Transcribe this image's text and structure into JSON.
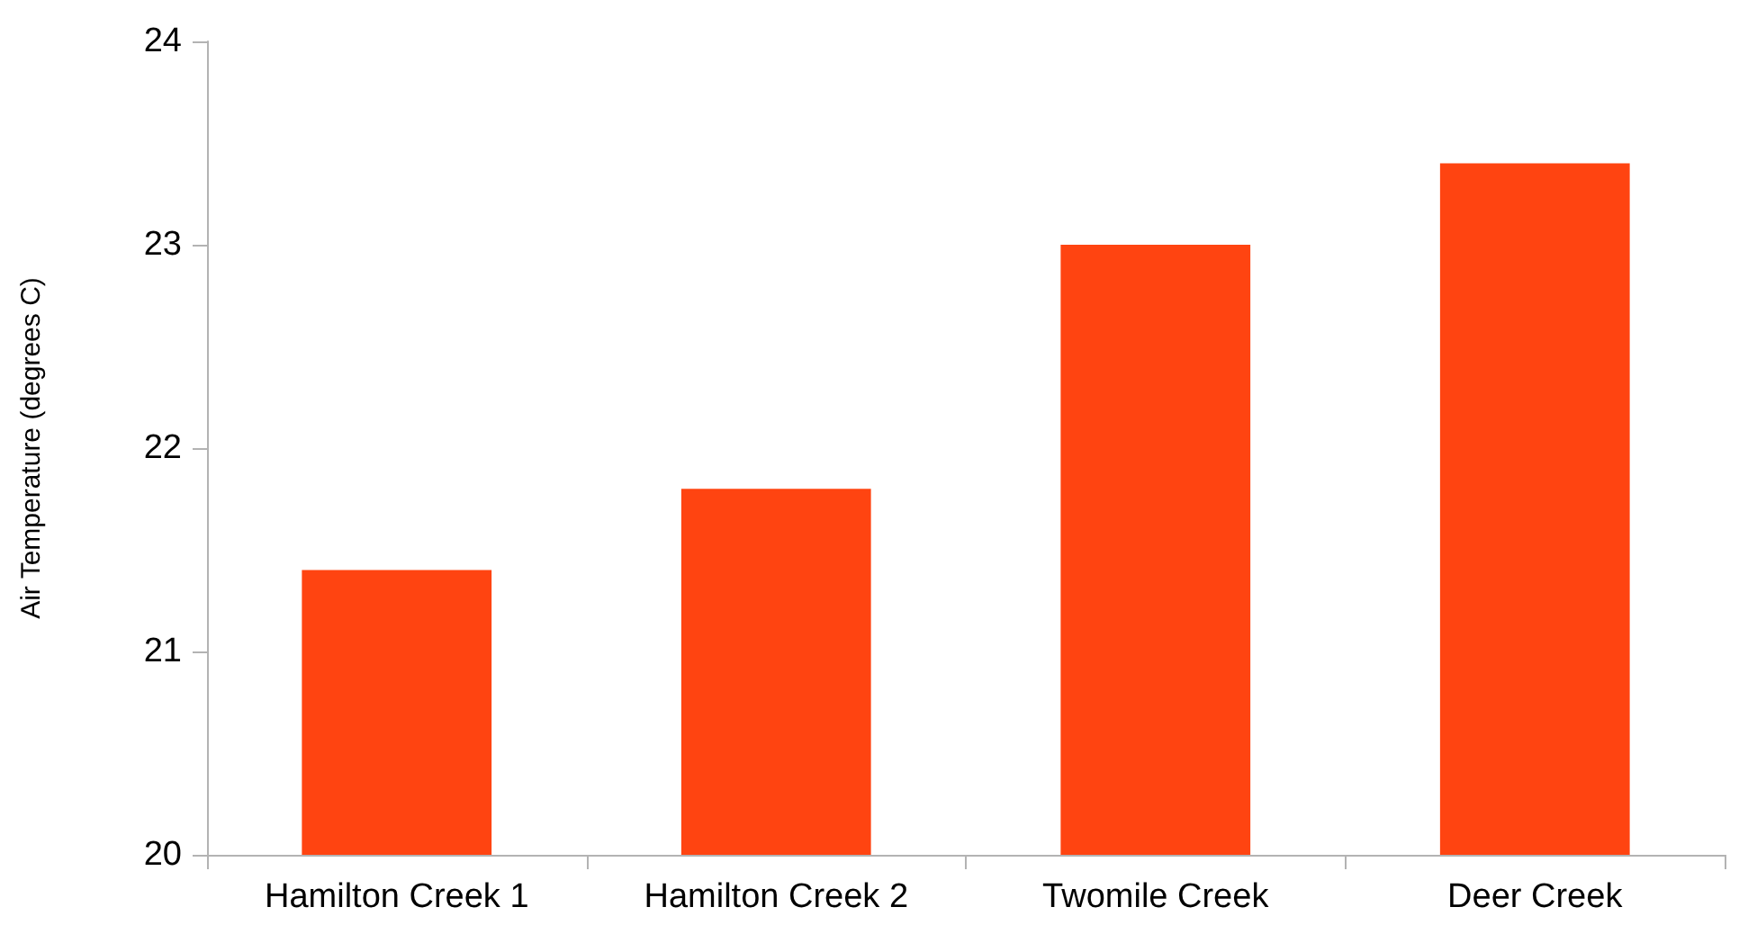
{
  "chart_data": {
    "type": "bar",
    "ylabel": "Air Temperature (degrees C)",
    "categories": [
      "Hamilton Creek 1",
      "Hamilton Creek 2",
      "Twomile Creek",
      "Deer Creek"
    ],
    "values": [
      21.4,
      21.8,
      23.0,
      23.4
    ],
    "color": "#ff4411",
    "ylim": [
      20,
      24
    ],
    "yticks": [
      20,
      21,
      22,
      23,
      24
    ],
    "grid": false
  }
}
